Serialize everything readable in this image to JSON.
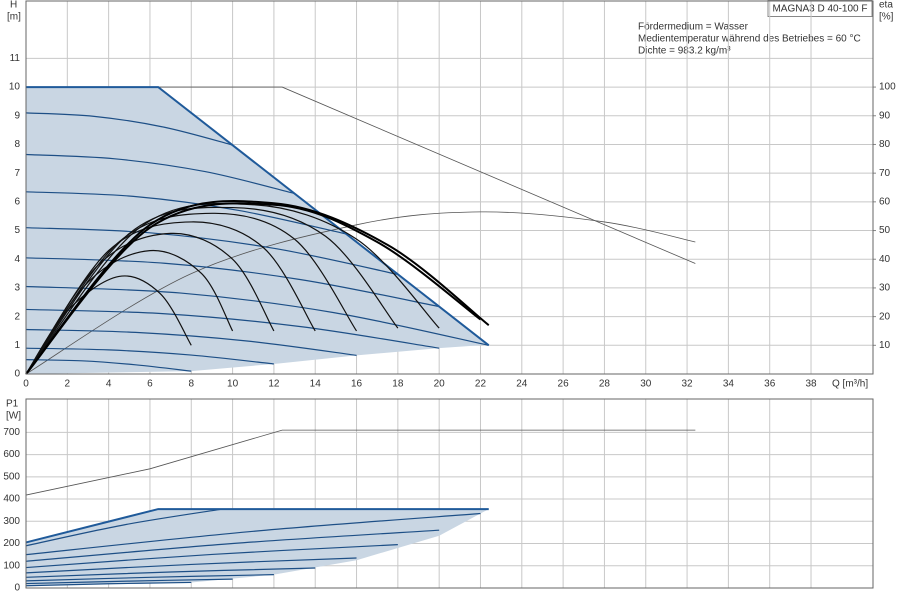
{
  "chart_data": [
    {
      "type": "line",
      "model": "MAGNA3 D 40-100 F",
      "annotations": [
        "Fördermedium = Wasser",
        "Medientemperatur während des Betriebes = 60 °C",
        "Dichte = 983.2 kg/m³"
      ],
      "y_label": [
        "H",
        "[m]"
      ],
      "y2_label": [
        "eta",
        "[%]"
      ],
      "x_label": "Q [m³/h]",
      "xlim": [
        0,
        41
      ],
      "xticks": [
        0,
        2,
        4,
        6,
        8,
        10,
        12,
        14,
        16,
        18,
        20,
        22,
        24,
        26,
        28,
        30,
        32,
        34,
        36,
        38
      ],
      "ylim": [
        0,
        13
      ],
      "yticks": [
        0,
        1,
        2,
        3,
        4,
        5,
        6,
        7,
        8,
        9,
        10,
        11
      ],
      "y2lim": [
        0,
        130
      ],
      "y2ticks": [
        10,
        20,
        30,
        40,
        50,
        60,
        70,
        80,
        90,
        100
      ],
      "grid": true,
      "show_xtick_labels": true,
      "series": [
        {
          "color": "#c9d6e3",
          "fill": true,
          "x": [
            0,
            6.4,
            10,
            14,
            18,
            22.4,
            22,
            20,
            16,
            12,
            8,
            0
          ],
          "values": [
            10,
            10,
            7.98,
            5.73,
            3.47,
            1.0,
            1.0,
            0.9,
            0.65,
            0.35,
            0.1,
            0
          ]
        },
        {
          "color": "#555555",
          "width": 0.8,
          "x": [
            0,
            12.4,
            32.4
          ],
          "values": [
            10,
            10,
            3.85
          ]
        },
        {
          "color": "#555555",
          "width": 0.8,
          "axis": "y2",
          "smooth": true,
          "x": [
            0,
            8,
            16,
            22,
            28,
            32.4
          ],
          "values": [
            0,
            35,
            52,
            56.5,
            53,
            46
          ]
        },
        {
          "color": "#1d4f86",
          "width": 1.2,
          "smooth": true,
          "x": [
            0,
            3.3,
            6.7,
            10
          ],
          "values": [
            9.1,
            8.98,
            8.6,
            7.98
          ]
        },
        {
          "color": "#1d4f86",
          "width": 1.2,
          "smooth": true,
          "x": [
            0,
            4.3,
            8.7,
            13
          ],
          "values": [
            7.65,
            7.5,
            7.05,
            6.29
          ]
        },
        {
          "color": "#1d4f86",
          "width": 1.2,
          "smooth": true,
          "x": [
            0,
            5.2,
            10.3,
            15.5
          ],
          "values": [
            6.35,
            6.19,
            5.7,
            4.88
          ]
        },
        {
          "color": "#1d4f86",
          "width": 1.2,
          "smooth": true,
          "x": [
            0,
            6,
            12,
            18
          ],
          "values": [
            5.1,
            4.92,
            4.38,
            3.47
          ]
        },
        {
          "color": "#1d4f86",
          "width": 1.2,
          "smooth": true,
          "x": [
            0,
            6.7,
            13.3,
            20
          ],
          "values": [
            4.05,
            3.86,
            3.29,
            2.35
          ]
        },
        {
          "color": "#1d4f86",
          "width": 1.2,
          "smooth": true,
          "x": [
            0,
            7.5,
            14.9,
            22.4
          ],
          "values": [
            3.05,
            2.82,
            2.14,
            1.0
          ]
        },
        {
          "color": "#1d4f86",
          "width": 1.2,
          "smooth": true,
          "x": [
            0,
            6.7,
            13.3,
            20
          ],
          "values": [
            2.25,
            2.1,
            1.65,
            0.9
          ]
        },
        {
          "color": "#1d4f86",
          "width": 1.2,
          "smooth": true,
          "x": [
            0,
            5.3,
            10.7,
            16
          ],
          "values": [
            1.55,
            1.45,
            1.15,
            0.65
          ]
        },
        {
          "color": "#1d4f86",
          "width": 1.2,
          "smooth": true,
          "x": [
            0,
            4,
            8,
            12
          ],
          "values": [
            0.9,
            0.84,
            0.66,
            0.35
          ]
        },
        {
          "color": "#1d4f86",
          "width": 1.2,
          "smooth": true,
          "x": [
            0,
            2.7,
            5.3,
            8
          ],
          "values": [
            0.5,
            0.46,
            0.32,
            0.1
          ]
        },
        {
          "color": "#1f5a9a",
          "width": 2,
          "x": [
            0,
            6.4,
            22.4
          ],
          "values": [
            10,
            10,
            1.0
          ]
        },
        {
          "color": "#111111",
          "width": 1.2,
          "axis": "y2",
          "smooth": true,
          "x": [
            0,
            2,
            4.5,
            6.5,
            8
          ],
          "values": [
            0,
            22,
            34,
            28,
            10
          ]
        },
        {
          "color": "#111111",
          "width": 1.2,
          "axis": "y2",
          "smooth": true,
          "x": [
            0,
            3,
            6,
            8.5,
            10
          ],
          "values": [
            0,
            32,
            43,
            35,
            15
          ]
        },
        {
          "color": "#111111",
          "width": 1.2,
          "axis": "y2",
          "smooth": true,
          "x": [
            0,
            3.5,
            7,
            10,
            12
          ],
          "values": [
            0,
            38,
            49,
            40,
            15
          ]
        },
        {
          "color": "#111111",
          "width": 1.2,
          "axis": "y2",
          "smooth": true,
          "x": [
            0,
            4,
            8,
            11.5,
            14
          ],
          "values": [
            0,
            43,
            53,
            44,
            15
          ]
        },
        {
          "color": "#111111",
          "width": 1.2,
          "axis": "y2",
          "smooth": true,
          "x": [
            0,
            4.5,
            9,
            13,
            16
          ],
          "values": [
            0,
            46,
            56,
            47,
            15
          ]
        },
        {
          "color": "#111111",
          "width": 1.2,
          "axis": "y2",
          "smooth": true,
          "x": [
            0,
            5,
            10,
            14.5,
            18
          ],
          "values": [
            0,
            49,
            58,
            48,
            16
          ]
        },
        {
          "color": "#111111",
          "width": 1.2,
          "axis": "y2",
          "smooth": true,
          "x": [
            0,
            5.5,
            11,
            16,
            20
          ],
          "values": [
            0,
            51,
            59,
            47,
            16
          ]
        },
        {
          "color": "#000000",
          "width": 2,
          "axis": "y2",
          "smooth": true,
          "x": [
            0,
            6,
            12,
            17,
            22
          ],
          "values": [
            0,
            51,
            59,
            46,
            19
          ]
        },
        {
          "color": "#000000",
          "width": 2,
          "axis": "y2",
          "smooth": true,
          "x": [
            0,
            6,
            12,
            17.5,
            22.4
          ],
          "values": [
            0,
            52,
            59.5,
            45,
            17
          ]
        }
      ]
    },
    {
      "type": "line",
      "y_label": [
        "P1",
        "[W]"
      ],
      "xlim": [
        0,
        41
      ],
      "xticks": [
        0,
        2,
        4,
        6,
        8,
        10,
        12,
        14,
        16,
        18,
        20,
        22,
        24,
        26,
        28,
        30,
        32,
        34,
        36,
        38
      ],
      "ylim": [
        0,
        850
      ],
      "yticks": [
        0,
        100,
        200,
        300,
        400,
        500,
        600,
        700
      ],
      "grid": true,
      "show_xtick_labels": false,
      "series": [
        {
          "color": "#c9d6e3",
          "fill": true,
          "x": [
            0,
            6.4,
            22.4,
            22,
            20,
            16,
            12,
            8,
            0
          ],
          "values": [
            205,
            355,
            355,
            335,
            235,
            125,
            60,
            25,
            10
          ]
        },
        {
          "color": "#555555",
          "width": 0.8,
          "x": [
            0,
            6,
            12.4,
            32.4
          ],
          "values": [
            418,
            536,
            710,
            710
          ]
        },
        {
          "color": "#1d4f86",
          "width": 1.2,
          "smooth": true,
          "x": [
            0,
            4.75,
            9.5
          ],
          "values": [
            190,
            284,
            355
          ]
        },
        {
          "color": "#1d4f86",
          "width": 1.2,
          "smooth": true,
          "x": [
            0,
            11,
            22
          ],
          "values": [
            150,
            255,
            335
          ]
        },
        {
          "color": "#1d4f86",
          "width": 1.2,
          "smooth": true,
          "x": [
            0,
            10,
            20
          ],
          "values": [
            120,
            200,
            260
          ]
        },
        {
          "color": "#1d4f86",
          "width": 1.2,
          "smooth": true,
          "x": [
            0,
            9,
            18
          ],
          "values": [
            92,
            151,
            195
          ]
        },
        {
          "color": "#1d4f86",
          "width": 1.2,
          "smooth": true,
          "x": [
            0,
            8,
            16
          ],
          "values": [
            68,
            106,
            135
          ]
        },
        {
          "color": "#1d4f86",
          "width": 1.2,
          "smooth": true,
          "x": [
            0,
            7,
            14
          ],
          "values": [
            48,
            72,
            90
          ]
        },
        {
          "color": "#1d4f86",
          "width": 1.2,
          "smooth": true,
          "x": [
            0,
            6,
            12
          ],
          "values": [
            32,
            48,
            60
          ]
        },
        {
          "color": "#1d4f86",
          "width": 1.2,
          "smooth": true,
          "x": [
            0,
            5,
            10
          ],
          "values": [
            20,
            31,
            40
          ]
        },
        {
          "color": "#1d4f86",
          "width": 1.2,
          "smooth": true,
          "x": [
            0,
            4,
            8
          ],
          "values": [
            10,
            19,
            25
          ]
        },
        {
          "color": "#1f5a9a",
          "width": 2,
          "x": [
            0,
            6.4,
            22.4
          ],
          "values": [
            205,
            355,
            355
          ]
        }
      ]
    }
  ]
}
